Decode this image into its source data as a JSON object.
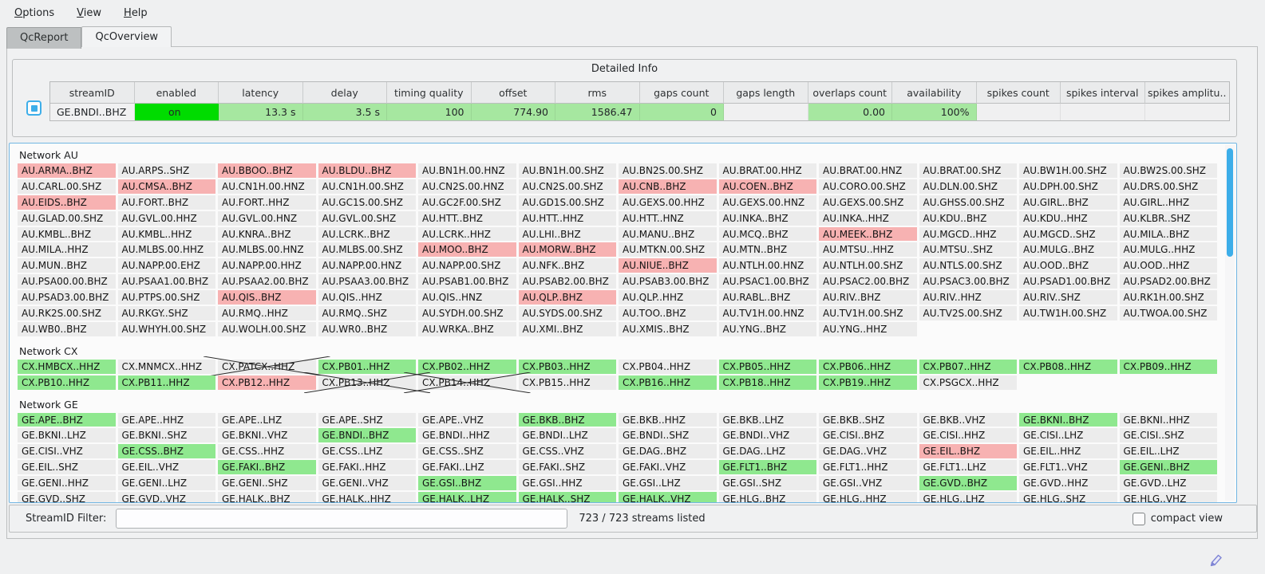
{
  "menu": {
    "items": [
      "Options",
      "View",
      "Help"
    ]
  },
  "tabs": [
    {
      "label": "QcReport",
      "active": false
    },
    {
      "label": "QcOverview",
      "active": true
    }
  ],
  "colors": {
    "accent_blue": "#3daee9",
    "cell_plain": "#ececec",
    "cell_good": "#8fe88f",
    "cell_alert": "#f7b2b2",
    "enabled_on": "#00dc00",
    "detail_good": "#a6e7a0"
  },
  "detailed_info": {
    "title": "Detailed Info",
    "columns": [
      "streamID",
      "enabled",
      "latency",
      "delay",
      "timing quality",
      "offset",
      "rms",
      "gaps count",
      "gaps length",
      "overlaps count",
      "availability",
      "spikes count",
      "spikes interval",
      "spikes amplitu.."
    ],
    "row": {
      "values": [
        "GE.BNDI..BHZ",
        "on",
        "13.3 s",
        "3.5 s",
        "100",
        "774.90",
        "1586.47",
        "0",
        "",
        "0.00",
        "100%",
        "",
        "",
        ""
      ],
      "cell_styles": [
        "c-id",
        "c-on",
        "c-good",
        "c-good",
        "c-good",
        "c-good",
        "c-good",
        "c-good",
        "c-empty",
        "c-good",
        "c-good",
        "c-empty",
        "c-empty",
        "c-empty"
      ]
    }
  },
  "state_legend": {
    "0": "plain",
    "1": "good-green",
    "2": "alert-red",
    "3": "disabled-crossed"
  },
  "networks": [
    {
      "name": "Network AU",
      "rows": [
        [
          [
            "AU.ARMA..BHZ",
            2
          ],
          [
            "AU.ARPS..SHZ",
            0
          ],
          [
            "AU.BBOO..BHZ",
            2
          ],
          [
            "AU.BLDU..BHZ",
            2
          ],
          [
            "AU.BN1H.00.HNZ",
            0
          ],
          [
            "AU.BN1H.00.SHZ",
            0
          ],
          [
            "AU.BN2S.00.SHZ",
            0
          ],
          [
            "AU.BRAT.00.HHZ",
            0
          ],
          [
            "AU.BRAT.00.HNZ",
            0
          ],
          [
            "AU.BRAT.00.SHZ",
            0
          ],
          [
            "AU.BW1H.00.SHZ",
            0
          ],
          [
            "AU.BW2S.00.SHZ",
            0
          ]
        ],
        [
          [
            "AU.CARL.00.SHZ",
            0
          ],
          [
            "AU.CMSA..BHZ",
            2
          ],
          [
            "AU.CN1H.00.HNZ",
            0
          ],
          [
            "AU.CN1H.00.SHZ",
            0
          ],
          [
            "AU.CN2S.00.HNZ",
            0
          ],
          [
            "AU.CN2S.00.SHZ",
            0
          ],
          [
            "AU.CNB..BHZ",
            2
          ],
          [
            "AU.COEN..BHZ",
            2
          ],
          [
            "AU.CORO.00.SHZ",
            0
          ],
          [
            "AU.DLN.00.SHZ",
            0
          ],
          [
            "AU.DPH.00.SHZ",
            0
          ],
          [
            "AU.DRS.00.SHZ",
            0
          ]
        ],
        [
          [
            "AU.EIDS..BHZ",
            2
          ],
          [
            "AU.FORT..BHZ",
            0
          ],
          [
            "AU.FORT..HHZ",
            0
          ],
          [
            "AU.GC1S.00.SHZ",
            0
          ],
          [
            "AU.GC2F.00.SHZ",
            0
          ],
          [
            "AU.GD1S.00.SHZ",
            0
          ],
          [
            "AU.GEXS.00.HHZ",
            0
          ],
          [
            "AU.GEXS.00.HNZ",
            0
          ],
          [
            "AU.GEXS.00.SHZ",
            0
          ],
          [
            "AU.GHSS.00.SHZ",
            0
          ],
          [
            "AU.GIRL..BHZ",
            0
          ],
          [
            "AU.GIRL..HHZ",
            0
          ]
        ],
        [
          [
            "AU.GLAD.00.SHZ",
            0
          ],
          [
            "AU.GVL.00.HHZ",
            0
          ],
          [
            "AU.GVL.00.HNZ",
            0
          ],
          [
            "AU.GVL.00.SHZ",
            0
          ],
          [
            "AU.HTT..BHZ",
            0
          ],
          [
            "AU.HTT..HHZ",
            0
          ],
          [
            "AU.HTT..HNZ",
            0
          ],
          [
            "AU.INKA..BHZ",
            0
          ],
          [
            "AU.INKA..HHZ",
            0
          ],
          [
            "AU.KDU..BHZ",
            0
          ],
          [
            "AU.KDU..HHZ",
            0
          ],
          [
            "AU.KLBR..SHZ",
            0
          ]
        ],
        [
          [
            "AU.KMBL..BHZ",
            0
          ],
          [
            "AU.KMBL..HHZ",
            0
          ],
          [
            "AU.KNRA..BHZ",
            0
          ],
          [
            "AU.LCRK..BHZ",
            0
          ],
          [
            "AU.LCRK..HHZ",
            0
          ],
          [
            "AU.LHI..BHZ",
            0
          ],
          [
            "AU.MANU..BHZ",
            0
          ],
          [
            "AU.MCQ..BHZ",
            0
          ],
          [
            "AU.MEEK..BHZ",
            2
          ],
          [
            "AU.MGCD..HHZ",
            0
          ],
          [
            "AU.MGCD..SHZ",
            0
          ],
          [
            "AU.MILA..BHZ",
            0
          ]
        ],
        [
          [
            "AU.MILA..HHZ",
            0
          ],
          [
            "AU.MLBS.00.HHZ",
            0
          ],
          [
            "AU.MLBS.00.HNZ",
            0
          ],
          [
            "AU.MLBS.00.SHZ",
            0
          ],
          [
            "AU.MOO..BHZ",
            2
          ],
          [
            "AU.MORW..BHZ",
            2
          ],
          [
            "AU.MTKN.00.SHZ",
            0
          ],
          [
            "AU.MTN..BHZ",
            0
          ],
          [
            "AU.MTSU..HHZ",
            0
          ],
          [
            "AU.MTSU..SHZ",
            0
          ],
          [
            "AU.MULG..BHZ",
            0
          ],
          [
            "AU.MULG..HHZ",
            0
          ]
        ],
        [
          [
            "AU.MUN..BHZ",
            0
          ],
          [
            "AU.NAPP.00.EHZ",
            0
          ],
          [
            "AU.NAPP.00.HHZ",
            0
          ],
          [
            "AU.NAPP.00.HNZ",
            0
          ],
          [
            "AU.NAPP.00.SHZ",
            0
          ],
          [
            "AU.NFK..BHZ",
            0
          ],
          [
            "AU.NIUE..BHZ",
            2
          ],
          [
            "AU.NTLH.00.HNZ",
            0
          ],
          [
            "AU.NTLH.00.SHZ",
            0
          ],
          [
            "AU.NTLS.00.SHZ",
            0
          ],
          [
            "AU.OOD..BHZ",
            0
          ],
          [
            "AU.OOD..HHZ",
            0
          ]
        ],
        [
          [
            "AU.PSA00.00.BHZ",
            0
          ],
          [
            "AU.PSAA1.00.BHZ",
            0
          ],
          [
            "AU.PSAA2.00.BHZ",
            0
          ],
          [
            "AU.PSAA3.00.BHZ",
            0
          ],
          [
            "AU.PSAB1.00.BHZ",
            0
          ],
          [
            "AU.PSAB2.00.BHZ",
            0
          ],
          [
            "AU.PSAB3.00.BHZ",
            0
          ],
          [
            "AU.PSAC1.00.BHZ",
            0
          ],
          [
            "AU.PSAC2.00.BHZ",
            0
          ],
          [
            "AU.PSAC3.00.BHZ",
            0
          ],
          [
            "AU.PSAD1.00.BHZ",
            0
          ],
          [
            "AU.PSAD2.00.BHZ",
            0
          ]
        ],
        [
          [
            "AU.PSAD3.00.BHZ",
            0
          ],
          [
            "AU.PTPS.00.SHZ",
            0
          ],
          [
            "AU.QIS..BHZ",
            2
          ],
          [
            "AU.QIS..HHZ",
            0
          ],
          [
            "AU.QIS..HNZ",
            0
          ],
          [
            "AU.QLP..BHZ",
            2
          ],
          [
            "AU.QLP..HHZ",
            0
          ],
          [
            "AU.RABL..BHZ",
            0
          ],
          [
            "AU.RIV..BHZ",
            0
          ],
          [
            "AU.RIV..HHZ",
            0
          ],
          [
            "AU.RIV..SHZ",
            0
          ],
          [
            "AU.RK1H.00.SHZ",
            0
          ]
        ],
        [
          [
            "AU.RK2S.00.SHZ",
            0
          ],
          [
            "AU.RKGY..SHZ",
            0
          ],
          [
            "AU.RMQ..HHZ",
            0
          ],
          [
            "AU.RMQ..SHZ",
            0
          ],
          [
            "AU.SYDH.00.SHZ",
            0
          ],
          [
            "AU.SYDS.00.SHZ",
            0
          ],
          [
            "AU.TOO..BHZ",
            0
          ],
          [
            "AU.TV1H.00.HNZ",
            0
          ],
          [
            "AU.TV1H.00.SHZ",
            0
          ],
          [
            "AU.TV2S.00.SHZ",
            0
          ],
          [
            "AU.TW1H.00.SHZ",
            0
          ],
          [
            "AU.TWOA.00.SHZ",
            0
          ]
        ],
        [
          [
            "AU.WB0..BHZ",
            0
          ],
          [
            "AU.WHYH.00.SHZ",
            0
          ],
          [
            "AU.WOLH.00.SHZ",
            0
          ],
          [
            "AU.WR0..BHZ",
            0
          ],
          [
            "AU.WRKA..BHZ",
            0
          ],
          [
            "AU.XMI..BHZ",
            0
          ],
          [
            "AU.XMIS..BHZ",
            0
          ],
          [
            "AU.YNG..BHZ",
            0
          ],
          [
            "AU.YNG..HHZ",
            0
          ]
        ]
      ]
    },
    {
      "name": "Network CX",
      "rows": [
        [
          [
            "CX.HMBCX..HHZ",
            1
          ],
          [
            "CX.MNMCX..HHZ",
            0
          ],
          [
            "CX.PATCX..HHZ",
            3
          ],
          [
            "CX.PB01..HHZ",
            1
          ],
          [
            "CX.PB02..HHZ",
            1
          ],
          [
            "CX.PB03..HHZ",
            1
          ],
          [
            "CX.PB04..HHZ",
            0
          ],
          [
            "CX.PB05..HHZ",
            1
          ],
          [
            "CX.PB06..HHZ",
            1
          ],
          [
            "CX.PB07..HHZ",
            1
          ],
          [
            "CX.PB08..HHZ",
            1
          ],
          [
            "CX.PB09..HHZ",
            1
          ]
        ],
        [
          [
            "CX.PB10..HHZ",
            1
          ],
          [
            "CX.PB11..HHZ",
            1
          ],
          [
            "CX.PB12..HHZ",
            2
          ],
          [
            "CX.PB13..HHZ",
            3
          ],
          [
            "CX.PB14..HHZ",
            3
          ],
          [
            "CX.PB15..HHZ",
            0
          ],
          [
            "CX.PB16..HHZ",
            1
          ],
          [
            "CX.PB18..HHZ",
            1
          ],
          [
            "CX.PB19..HHZ",
            1
          ],
          [
            "CX.PSGCX..HHZ",
            0
          ]
        ]
      ]
    },
    {
      "name": "Network GE",
      "rows": [
        [
          [
            "GE.APE..BHZ",
            1
          ],
          [
            "GE.APE..HHZ",
            0
          ],
          [
            "GE.APE..LHZ",
            0
          ],
          [
            "GE.APE..SHZ",
            0
          ],
          [
            "GE.APE..VHZ",
            0
          ],
          [
            "GE.BKB..BHZ",
            1
          ],
          [
            "GE.BKB..HHZ",
            0
          ],
          [
            "GE.BKB..LHZ",
            0
          ],
          [
            "GE.BKB..SHZ",
            0
          ],
          [
            "GE.BKB..VHZ",
            0
          ],
          [
            "GE.BKNI..BHZ",
            1
          ],
          [
            "GE.BKNI..HHZ",
            0
          ]
        ],
        [
          [
            "GE.BKNI..LHZ",
            0
          ],
          [
            "GE.BKNI..SHZ",
            0
          ],
          [
            "GE.BKNI..VHZ",
            0
          ],
          [
            "GE.BNDI..BHZ",
            1
          ],
          [
            "GE.BNDI..HHZ",
            0
          ],
          [
            "GE.BNDI..LHZ",
            0
          ],
          [
            "GE.BNDI..SHZ",
            0
          ],
          [
            "GE.BNDI..VHZ",
            0
          ],
          [
            "GE.CISI..BHZ",
            0
          ],
          [
            "GE.CISI..HHZ",
            0
          ],
          [
            "GE.CISI..LHZ",
            0
          ],
          [
            "GE.CISI..SHZ",
            0
          ]
        ],
        [
          [
            "GE.CISI..VHZ",
            0
          ],
          [
            "GE.CSS..BHZ",
            1
          ],
          [
            "GE.CSS..HHZ",
            0
          ],
          [
            "GE.CSS..LHZ",
            0
          ],
          [
            "GE.CSS..SHZ",
            0
          ],
          [
            "GE.CSS..VHZ",
            0
          ],
          [
            "GE.DAG..BHZ",
            0
          ],
          [
            "GE.DAG..LHZ",
            0
          ],
          [
            "GE.DAG..VHZ",
            0
          ],
          [
            "GE.EIL..BHZ",
            2
          ],
          [
            "GE.EIL..HHZ",
            0
          ],
          [
            "GE.EIL..LHZ",
            0
          ]
        ],
        [
          [
            "GE.EIL..SHZ",
            0
          ],
          [
            "GE.EIL..VHZ",
            0
          ],
          [
            "GE.FAKI..BHZ",
            1
          ],
          [
            "GE.FAKI..HHZ",
            0
          ],
          [
            "GE.FAKI..LHZ",
            0
          ],
          [
            "GE.FAKI..SHZ",
            0
          ],
          [
            "GE.FAKI..VHZ",
            0
          ],
          [
            "GE.FLT1..BHZ",
            1
          ],
          [
            "GE.FLT1..HHZ",
            0
          ],
          [
            "GE.FLT1..LHZ",
            0
          ],
          [
            "GE.FLT1..VHZ",
            0
          ],
          [
            "GE.GENI..BHZ",
            1
          ]
        ],
        [
          [
            "GE.GENI..HHZ",
            0
          ],
          [
            "GE.GENI..LHZ",
            0
          ],
          [
            "GE.GENI..SHZ",
            0
          ],
          [
            "GE.GENI..VHZ",
            0
          ],
          [
            "GE.GSI..BHZ",
            1
          ],
          [
            "GE.GSI..HHZ",
            0
          ],
          [
            "GE.GSI..LHZ",
            0
          ],
          [
            "GE.GSI..SHZ",
            0
          ],
          [
            "GE.GSI..VHZ",
            0
          ],
          [
            "GE.GVD..BHZ",
            1
          ],
          [
            "GE.GVD..HHZ",
            0
          ],
          [
            "GE.GVD..LHZ",
            0
          ]
        ],
        [
          [
            "GE.GVD..SHZ",
            0
          ],
          [
            "GE.GVD..VHZ",
            0
          ],
          [
            "GE.HALK..BHZ",
            0
          ],
          [
            "GE.HALK..HHZ",
            0
          ],
          [
            "GE.HALK..LHZ",
            1
          ],
          [
            "GE.HALK..SHZ",
            1
          ],
          [
            "GE.HALK..VHZ",
            1
          ],
          [
            "GE.HLG..BHZ",
            0
          ],
          [
            "GE.HLG..HHZ",
            0
          ],
          [
            "GE.HLG..LHZ",
            0
          ],
          [
            "GE.HLG..SHZ",
            0
          ],
          [
            "GE.HLG..VHZ",
            0
          ]
        ]
      ]
    }
  ],
  "footer": {
    "filter_label": "StreamID Filter:",
    "filter_value": "",
    "status": "723 / 723 streams listed",
    "compact_label": "compact view",
    "compact_checked": false
  }
}
